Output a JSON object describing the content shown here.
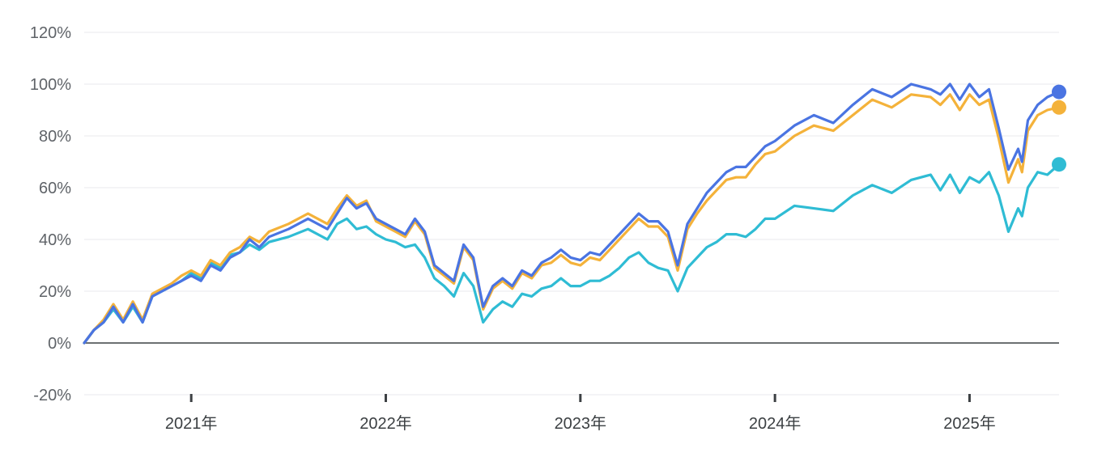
{
  "chart_data": {
    "type": "line",
    "y_tick_labels": [
      "120%",
      "100%",
      "80%",
      "60%",
      "40%",
      "20%",
      "0%",
      "-20%"
    ],
    "y_tick_values": [
      120,
      100,
      80,
      60,
      40,
      20,
      0,
      -20
    ],
    "ylim": [
      -20,
      120
    ],
    "x_tick_labels": [
      "2021年",
      "2022年",
      "2023年",
      "2024年",
      "2025年"
    ],
    "x_tick_values": [
      2021.0,
      2022.0,
      2023.0,
      2024.0,
      2025.0
    ],
    "xlim": [
      2020.45,
      2025.46
    ],
    "grid": true,
    "legend": "none",
    "series": [
      {
        "color": "#4a74e2",
        "x": [
          2020.45,
          2020.5,
          2020.55,
          2020.6,
          2020.65,
          2020.7,
          2020.75,
          2020.8,
          2020.85,
          2020.9,
          2020.95,
          2021.0,
          2021.05,
          2021.1,
          2021.15,
          2021.2,
          2021.25,
          2021.3,
          2021.35,
          2021.4,
          2021.5,
          2021.6,
          2021.7,
          2021.75,
          2021.8,
          2021.85,
          2021.9,
          2021.95,
          2022.0,
          2022.05,
          2022.1,
          2022.15,
          2022.2,
          2022.25,
          2022.3,
          2022.35,
          2022.4,
          2022.45,
          2022.5,
          2022.55,
          2022.6,
          2022.65,
          2022.7,
          2022.75,
          2022.8,
          2022.85,
          2022.9,
          2022.95,
          2023.0,
          2023.05,
          2023.1,
          2023.15,
          2023.2,
          2023.25,
          2023.3,
          2023.35,
          2023.4,
          2023.45,
          2023.5,
          2023.55,
          2023.6,
          2023.65,
          2023.7,
          2023.75,
          2023.8,
          2023.85,
          2023.9,
          2023.95,
          2024.0,
          2024.1,
          2024.2,
          2024.3,
          2024.4,
          2024.5,
          2024.6,
          2024.7,
          2024.8,
          2024.85,
          2024.9,
          2024.95,
          2025.0,
          2025.05,
          2025.1,
          2025.15,
          2025.2,
          2025.25,
          2025.27,
          2025.3,
          2025.35,
          2025.4,
          2025.46
        ],
        "y": [
          0,
          5,
          8,
          14,
          8,
          15,
          8,
          18,
          20,
          22,
          24,
          26,
          24,
          30,
          28,
          33,
          35,
          40,
          37,
          41,
          44,
          48,
          44,
          50,
          56,
          52,
          54,
          48,
          46,
          44,
          42,
          48,
          43,
          30,
          27,
          24,
          38,
          33,
          14,
          22,
          25,
          22,
          28,
          26,
          31,
          33,
          36,
          33,
          32,
          35,
          34,
          38,
          42,
          46,
          50,
          47,
          47,
          43,
          30,
          46,
          52,
          58,
          62,
          66,
          68,
          68,
          72,
          76,
          78,
          84,
          88,
          85,
          92,
          98,
          95,
          100,
          98,
          96,
          100,
          94,
          100,
          95,
          98,
          83,
          67,
          75,
          70,
          86,
          92,
          95,
          97
        ]
      },
      {
        "color": "#f4b23a",
        "x": [
          2020.45,
          2020.5,
          2020.55,
          2020.6,
          2020.65,
          2020.7,
          2020.75,
          2020.8,
          2020.85,
          2020.9,
          2020.95,
          2021.0,
          2021.05,
          2021.1,
          2021.15,
          2021.2,
          2021.25,
          2021.3,
          2021.35,
          2021.4,
          2021.5,
          2021.6,
          2021.7,
          2021.75,
          2021.8,
          2021.85,
          2021.9,
          2021.95,
          2022.0,
          2022.05,
          2022.1,
          2022.15,
          2022.2,
          2022.25,
          2022.3,
          2022.35,
          2022.4,
          2022.45,
          2022.5,
          2022.55,
          2022.6,
          2022.65,
          2022.7,
          2022.75,
          2022.8,
          2022.85,
          2022.9,
          2022.95,
          2023.0,
          2023.05,
          2023.1,
          2023.15,
          2023.2,
          2023.25,
          2023.3,
          2023.35,
          2023.4,
          2023.45,
          2023.5,
          2023.55,
          2023.6,
          2023.65,
          2023.7,
          2023.75,
          2023.8,
          2023.85,
          2023.9,
          2023.95,
          2024.0,
          2024.1,
          2024.2,
          2024.3,
          2024.4,
          2024.5,
          2024.6,
          2024.7,
          2024.8,
          2024.85,
          2024.9,
          2024.95,
          2025.0,
          2025.05,
          2025.1,
          2025.15,
          2025.2,
          2025.25,
          2025.27,
          2025.3,
          2025.35,
          2025.4,
          2025.46
        ],
        "y": [
          0,
          5,
          9,
          15,
          9,
          16,
          9,
          19,
          21,
          23,
          26,
          28,
          26,
          32,
          30,
          35,
          37,
          41,
          39,
          43,
          46,
          50,
          46,
          52,
          57,
          53,
          55,
          47,
          45,
          43,
          41,
          47,
          42,
          29,
          26,
          23,
          37,
          32,
          13,
          21,
          24,
          21,
          27,
          25,
          30,
          31,
          34,
          31,
          30,
          33,
          32,
          36,
          40,
          44,
          48,
          45,
          45,
          41,
          28,
          44,
          50,
          55,
          59,
          63,
          64,
          64,
          69,
          73,
          74,
          80,
          84,
          82,
          88,
          94,
          91,
          96,
          95,
          92,
          96,
          90,
          96,
          92,
          94,
          79,
          62,
          71,
          66,
          82,
          88,
          90,
          91
        ]
      },
      {
        "color": "#2fbcd4",
        "x": [
          2020.45,
          2020.5,
          2020.55,
          2020.6,
          2020.65,
          2020.7,
          2020.75,
          2020.8,
          2020.85,
          2020.9,
          2020.95,
          2021.0,
          2021.05,
          2021.1,
          2021.15,
          2021.2,
          2021.25,
          2021.3,
          2021.35,
          2021.4,
          2021.5,
          2021.6,
          2021.7,
          2021.75,
          2021.8,
          2021.85,
          2021.9,
          2021.95,
          2022.0,
          2022.05,
          2022.1,
          2022.15,
          2022.2,
          2022.25,
          2022.3,
          2022.35,
          2022.4,
          2022.45,
          2022.5,
          2022.55,
          2022.6,
          2022.65,
          2022.7,
          2022.75,
          2022.8,
          2022.85,
          2022.9,
          2022.95,
          2023.0,
          2023.05,
          2023.1,
          2023.15,
          2023.2,
          2023.25,
          2023.3,
          2023.35,
          2023.4,
          2023.45,
          2023.5,
          2023.55,
          2023.6,
          2023.65,
          2023.7,
          2023.75,
          2023.8,
          2023.85,
          2023.9,
          2023.95,
          2024.0,
          2024.1,
          2024.2,
          2024.3,
          2024.4,
          2024.5,
          2024.6,
          2024.7,
          2024.8,
          2024.85,
          2024.9,
          2024.95,
          2025.0,
          2025.05,
          2025.1,
          2025.15,
          2025.2,
          2025.25,
          2025.27,
          2025.3,
          2025.35,
          2025.4,
          2025.46
        ],
        "y": [
          0,
          5,
          8,
          13,
          8,
          14,
          8,
          18,
          20,
          22,
          24,
          27,
          25,
          31,
          29,
          34,
          35,
          38,
          36,
          39,
          41,
          44,
          40,
          46,
          48,
          44,
          45,
          42,
          40,
          39,
          37,
          38,
          33,
          25,
          22,
          18,
          27,
          22,
          8,
          13,
          16,
          14,
          19,
          18,
          21,
          22,
          25,
          22,
          22,
          24,
          24,
          26,
          29,
          33,
          35,
          31,
          29,
          28,
          20,
          29,
          33,
          37,
          39,
          42,
          42,
          41,
          44,
          48,
          48,
          53,
          52,
          51,
          57,
          61,
          58,
          63,
          65,
          59,
          65,
          58,
          64,
          62,
          66,
          57,
          43,
          52,
          49,
          60,
          66,
          65,
          69
        ]
      }
    ]
  }
}
